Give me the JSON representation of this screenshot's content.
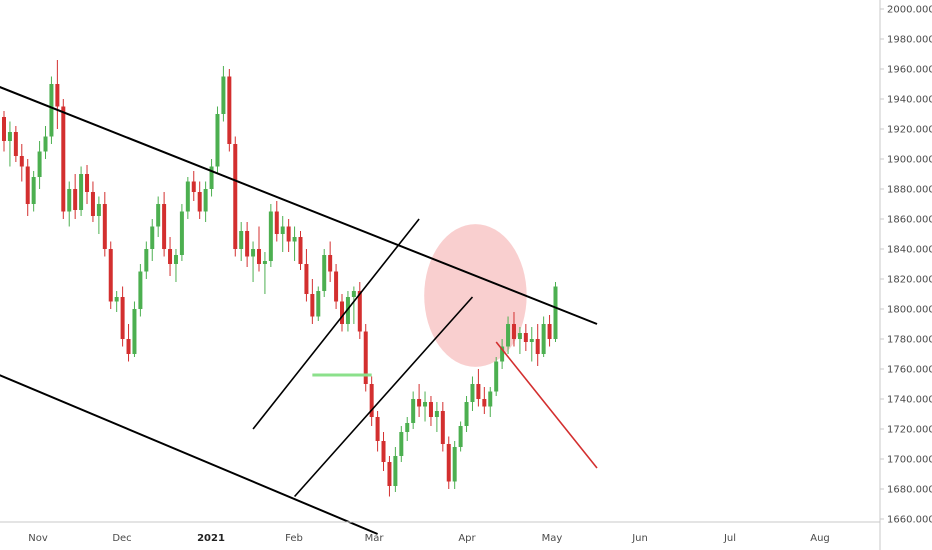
{
  "colors": {
    "up": "#4caf50",
    "down": "#d32f2f",
    "trendline": "#000000",
    "projection": "#d32f2f",
    "resistance": "#8be08b",
    "highlight": "#f4a8a8",
    "axis_text": "#4a4a4a",
    "axis_line": "#c8c8c8"
  },
  "chart_data": {
    "type": "candlestick",
    "y_axis": {
      "min": 1650,
      "max": 2000,
      "ticks": [
        "1660.000",
        "1680.000",
        "1700.000",
        "1720.000",
        "1740.000",
        "1760.000",
        "1780.000",
        "1800.000",
        "1820.000",
        "1840.000",
        "1860.000",
        "1880.000",
        "1900.000",
        "1920.000",
        "1940.000",
        "1960.000",
        "1980.000",
        "2000.000"
      ]
    },
    "x_axis": {
      "ticks": [
        {
          "label": "Nov",
          "bold": false
        },
        {
          "label": "Dec",
          "bold": false
        },
        {
          "label": "2021",
          "bold": true
        },
        {
          "label": "Feb",
          "bold": false
        },
        {
          "label": "Mar",
          "bold": false
        },
        {
          "label": "Apr",
          "bold": false
        },
        {
          "label": "May",
          "bold": false
        },
        {
          "label": "Jun",
          "bold": false
        },
        {
          "label": "Jul",
          "bold": false
        },
        {
          "label": "Aug",
          "bold": false
        }
      ]
    },
    "candles": [
      [
        1928,
        1932,
        1905,
        1912
      ],
      [
        1912,
        1925,
        1895,
        1918
      ],
      [
        1918,
        1922,
        1898,
        1902
      ],
      [
        1902,
        1910,
        1885,
        1895
      ],
      [
        1895,
        1900,
        1862,
        1870
      ],
      [
        1870,
        1892,
        1865,
        1888
      ],
      [
        1888,
        1912,
        1880,
        1905
      ],
      [
        1905,
        1922,
        1900,
        1915
      ],
      [
        1915,
        1955,
        1910,
        1950
      ],
      [
        1950,
        1966,
        1920,
        1935
      ],
      [
        1935,
        1940,
        1860,
        1865
      ],
      [
        1865,
        1885,
        1855,
        1880
      ],
      [
        1880,
        1890,
        1860,
        1866
      ],
      [
        1866,
        1895,
        1862,
        1890
      ],
      [
        1890,
        1896,
        1870,
        1878
      ],
      [
        1878,
        1885,
        1858,
        1862
      ],
      [
        1862,
        1875,
        1850,
        1870
      ],
      [
        1870,
        1878,
        1835,
        1840
      ],
      [
        1840,
        1845,
        1800,
        1805
      ],
      [
        1805,
        1812,
        1798,
        1808
      ],
      [
        1808,
        1815,
        1775,
        1780
      ],
      [
        1780,
        1790,
        1765,
        1770
      ],
      [
        1770,
        1805,
        1768,
        1800
      ],
      [
        1800,
        1830,
        1795,
        1825
      ],
      [
        1825,
        1845,
        1820,
        1840
      ],
      [
        1840,
        1860,
        1832,
        1855
      ],
      [
        1855,
        1875,
        1848,
        1870
      ],
      [
        1870,
        1878,
        1835,
        1840
      ],
      [
        1840,
        1848,
        1822,
        1830
      ],
      [
        1830,
        1840,
        1818,
        1836
      ],
      [
        1836,
        1870,
        1832,
        1865
      ],
      [
        1865,
        1888,
        1860,
        1885
      ],
      [
        1885,
        1892,
        1872,
        1878
      ],
      [
        1878,
        1885,
        1860,
        1865
      ],
      [
        1865,
        1885,
        1858,
        1880
      ],
      [
        1880,
        1900,
        1875,
        1895
      ],
      [
        1895,
        1935,
        1890,
        1930
      ],
      [
        1930,
        1962,
        1925,
        1955
      ],
      [
        1955,
        1960,
        1905,
        1910
      ],
      [
        1910,
        1915,
        1835,
        1840
      ],
      [
        1840,
        1858,
        1832,
        1852
      ],
      [
        1852,
        1858,
        1828,
        1835
      ],
      [
        1835,
        1845,
        1818,
        1840
      ],
      [
        1840,
        1855,
        1825,
        1830
      ],
      [
        1830,
        1838,
        1810,
        1832
      ],
      [
        1832,
        1870,
        1828,
        1865
      ],
      [
        1865,
        1872,
        1845,
        1850
      ],
      [
        1850,
        1862,
        1838,
        1855
      ],
      [
        1855,
        1860,
        1838,
        1845
      ],
      [
        1845,
        1855,
        1832,
        1848
      ],
      [
        1848,
        1852,
        1826,
        1830
      ],
      [
        1830,
        1840,
        1805,
        1810
      ],
      [
        1810,
        1820,
        1790,
        1795
      ],
      [
        1795,
        1815,
        1792,
        1812
      ],
      [
        1812,
        1840,
        1808,
        1836
      ],
      [
        1836,
        1845,
        1818,
        1825
      ],
      [
        1825,
        1830,
        1800,
        1805
      ],
      [
        1805,
        1810,
        1785,
        1790
      ],
      [
        1790,
        1812,
        1785,
        1808
      ],
      [
        1808,
        1815,
        1790,
        1812
      ],
      [
        1812,
        1818,
        1780,
        1785
      ],
      [
        1785,
        1790,
        1745,
        1750
      ],
      [
        1750,
        1755,
        1722,
        1728
      ],
      [
        1728,
        1732,
        1705,
        1712
      ],
      [
        1712,
        1718,
        1692,
        1698
      ],
      [
        1698,
        1702,
        1675,
        1682
      ],
      [
        1682,
        1708,
        1678,
        1702
      ],
      [
        1702,
        1722,
        1698,
        1718
      ],
      [
        1718,
        1728,
        1712,
        1724
      ],
      [
        1724,
        1745,
        1720,
        1740
      ],
      [
        1740,
        1750,
        1728,
        1735
      ],
      [
        1735,
        1745,
        1725,
        1738
      ],
      [
        1738,
        1742,
        1722,
        1728
      ],
      [
        1728,
        1738,
        1718,
        1732
      ],
      [
        1732,
        1738,
        1705,
        1710
      ],
      [
        1710,
        1715,
        1680,
        1685
      ],
      [
        1685,
        1712,
        1680,
        1708
      ],
      [
        1708,
        1725,
        1705,
        1722
      ],
      [
        1722,
        1742,
        1718,
        1738
      ],
      [
        1738,
        1755,
        1732,
        1750
      ],
      [
        1750,
        1760,
        1735,
        1740
      ],
      [
        1740,
        1748,
        1730,
        1735
      ],
      [
        1735,
        1748,
        1728,
        1745
      ],
      [
        1745,
        1768,
        1742,
        1765
      ],
      [
        1765,
        1780,
        1760,
        1775
      ],
      [
        1775,
        1795,
        1770,
        1790
      ],
      [
        1790,
        1798,
        1775,
        1780
      ],
      [
        1780,
        1788,
        1770,
        1784
      ],
      [
        1784,
        1790,
        1772,
        1778
      ],
      [
        1778,
        1788,
        1765,
        1780
      ],
      [
        1780,
        1790,
        1762,
        1770
      ],
      [
        1770,
        1795,
        1768,
        1790
      ],
      [
        1790,
        1796,
        1775,
        1780
      ],
      [
        1780,
        1818,
        1778,
        1815
      ]
    ],
    "annotations": {
      "upper_channel_line": [
        [
          -2,
          1950
        ],
        [
          100,
          1790
        ]
      ],
      "lower_channel_line": [
        [
          -2,
          1758
        ],
        [
          63,
          1650
        ]
      ],
      "rising_channel_upper": [
        [
          42,
          1720
        ],
        [
          70,
          1860
        ]
      ],
      "rising_channel_lower": [
        [
          49,
          1675
        ],
        [
          79,
          1808
        ]
      ],
      "horizontal_resistance": {
        "y": 1756,
        "x_range": [
          52,
          62
        ]
      },
      "projection_arrow": [
        [
          83,
          1778
        ],
        [
          100,
          1694
        ]
      ],
      "highlight_zone": {
        "center": [
          79.5,
          1809
        ],
        "rx_days": 6.4,
        "ry_value": 34
      }
    }
  }
}
